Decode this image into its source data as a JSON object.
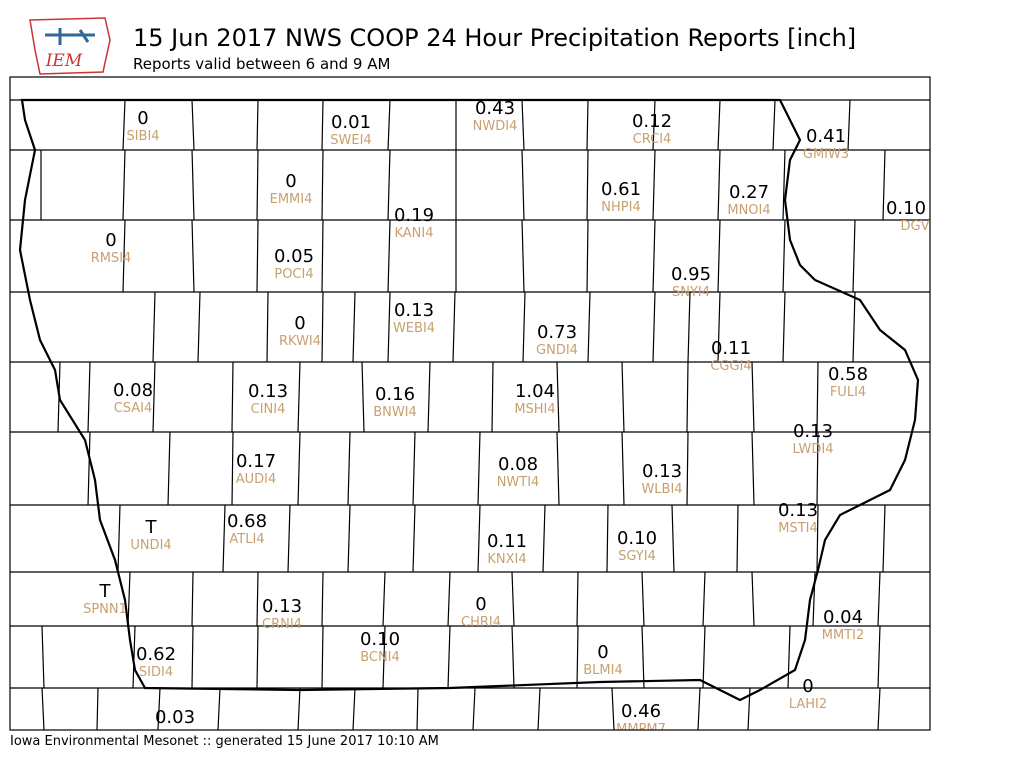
{
  "header": {
    "logo_text": "IEM",
    "title": "15 Jun 2017 NWS COOP 24 Hour Precipitation Reports [inch]",
    "subtitle": "Reports valid between 6 and 9 AM"
  },
  "stations": [
    {
      "value": "0",
      "id": "SIBI4"
    },
    {
      "value": "0.01",
      "id": "SWEI4"
    },
    {
      "value": "0.43",
      "id": "NWDI4"
    },
    {
      "value": "0.12",
      "id": "CRCI4"
    },
    {
      "value": "0.41",
      "id": "GMIW3"
    },
    {
      "value": "0",
      "id": "EMMI4"
    },
    {
      "value": "0.61",
      "id": "NHPI4"
    },
    {
      "value": "0.27",
      "id": "MNOI4"
    },
    {
      "value": "0.10",
      "id": "DGV"
    },
    {
      "value": "0.19",
      "id": "KANI4"
    },
    {
      "value": "0",
      "id": "RMSI4"
    },
    {
      "value": "0.05",
      "id": "POCI4"
    },
    {
      "value": "0.95",
      "id": "SNYI4"
    },
    {
      "value": "0",
      "id": "RKWI4"
    },
    {
      "value": "0.13",
      "id": "WEBI4"
    },
    {
      "value": "0.73",
      "id": "GNDI4"
    },
    {
      "value": "0.11",
      "id": "CGGI4"
    },
    {
      "value": "0.58",
      "id": "FULI4"
    },
    {
      "value": "0.08",
      "id": "CSAI4"
    },
    {
      "value": "0.13",
      "id": "CINI4"
    },
    {
      "value": "0.16",
      "id": "BNWI4"
    },
    {
      "value": "1.04",
      "id": "MSHI4"
    },
    {
      "value": "0.13",
      "id": "LWDI4"
    },
    {
      "value": "0.17",
      "id": "AUDI4"
    },
    {
      "value": "0.08",
      "id": "NWTI4"
    },
    {
      "value": "0.13",
      "id": "WLBI4"
    },
    {
      "value": "0.68",
      "id": "ATLI4"
    },
    {
      "value": "0.13",
      "id": "MSTI4"
    },
    {
      "value": "T",
      "id": "UNDI4"
    },
    {
      "value": "0.11",
      "id": "KNXI4"
    },
    {
      "value": "0.10",
      "id": "SGYI4"
    },
    {
      "value": "T",
      "id": "SPNN1"
    },
    {
      "value": "0.13",
      "id": "CRNI4"
    },
    {
      "value": "0",
      "id": "CHRI4"
    },
    {
      "value": "0.04",
      "id": "MMTI2"
    },
    {
      "value": "0.10",
      "id": "BCNI4"
    },
    {
      "value": "0",
      "id": "BLMI4"
    },
    {
      "value": "0.62",
      "id": "SIDI4"
    },
    {
      "value": "0",
      "id": "LAHI2"
    },
    {
      "value": "0.46",
      "id": "MMPM7"
    },
    {
      "value": "0.03"
    }
  ],
  "footer": "Iowa Environmental Mesonet :: generated 15 June 2017 10:10 AM"
}
